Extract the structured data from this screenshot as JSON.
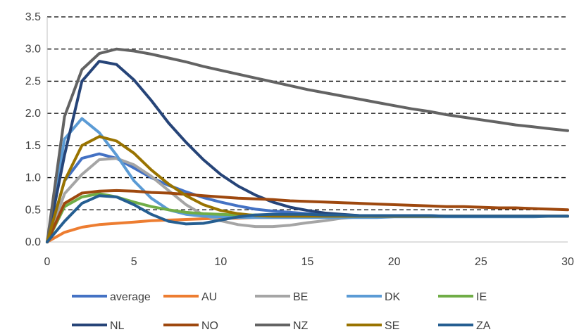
{
  "chart_data": {
    "type": "line",
    "title": "",
    "xlabel": "",
    "ylabel": "",
    "xlim": [
      0,
      30
    ],
    "ylim": [
      0,
      3.5
    ],
    "x_ticks": [
      0,
      5,
      10,
      15,
      20,
      25,
      30
    ],
    "y_ticks": [
      "0.0",
      "0.5",
      "1.0",
      "1.5",
      "2.0",
      "2.5",
      "3.0",
      "3.5"
    ],
    "grid": "horizontal dashed",
    "legend_position": "bottom",
    "x": [
      0,
      1,
      2,
      3,
      4,
      5,
      6,
      7,
      8,
      9,
      10,
      11,
      12,
      13,
      14,
      15,
      16,
      17,
      18,
      19,
      20,
      21,
      22,
      23,
      24,
      25,
      26,
      27,
      28,
      29,
      30
    ],
    "series": [
      {
        "name": "average",
        "color": "#4472C4",
        "values": [
          0,
          0.95,
          1.3,
          1.37,
          1.3,
          1.15,
          1.0,
          0.88,
          0.78,
          0.69,
          0.62,
          0.56,
          0.51,
          0.48,
          0.46,
          0.44,
          0.43,
          0.42,
          0.41,
          0.41,
          0.41,
          0.41,
          0.41,
          0.4,
          0.4,
          0.4,
          0.4,
          0.4,
          0.4,
          0.4,
          0.4
        ]
      },
      {
        "name": "AU",
        "color": "#ED7D31",
        "values": [
          0,
          0.15,
          0.23,
          0.27,
          0.29,
          0.31,
          0.33,
          0.34,
          0.35,
          0.36,
          0.37,
          0.37,
          0.38,
          0.38,
          0.38,
          0.39,
          0.39,
          0.39,
          0.39,
          0.39,
          0.4,
          0.4,
          0.4,
          0.4,
          0.4,
          0.4,
          0.4,
          0.4,
          0.4,
          0.4,
          0.4
        ]
      },
      {
        "name": "BE",
        "color": "#A5A5A5",
        "values": [
          0,
          0.75,
          1.05,
          1.28,
          1.3,
          1.2,
          1.02,
          0.8,
          0.58,
          0.42,
          0.33,
          0.27,
          0.24,
          0.24,
          0.26,
          0.3,
          0.33,
          0.37,
          0.39,
          0.4,
          0.4,
          0.4,
          0.4,
          0.4,
          0.4,
          0.4,
          0.4,
          0.4,
          0.4,
          0.4,
          0.4
        ]
      },
      {
        "name": "DK",
        "color": "#5B9BD5",
        "values": [
          0,
          1.6,
          1.92,
          1.7,
          1.35,
          0.95,
          0.68,
          0.5,
          0.43,
          0.4,
          0.39,
          0.38,
          0.38,
          0.38,
          0.38,
          0.38,
          0.38,
          0.38,
          0.38,
          0.38,
          0.39,
          0.39,
          0.39,
          0.39,
          0.39,
          0.39,
          0.39,
          0.39,
          0.39,
          0.4,
          0.4
        ]
      },
      {
        "name": "IE",
        "color": "#70AD47",
        "values": [
          0,
          0.55,
          0.7,
          0.75,
          0.7,
          0.62,
          0.55,
          0.5,
          0.46,
          0.44,
          0.43,
          0.42,
          0.42,
          0.41,
          0.41,
          0.41,
          0.41,
          0.41,
          0.41,
          0.41,
          0.41,
          0.4,
          0.4,
          0.4,
          0.4,
          0.4,
          0.4,
          0.4,
          0.4,
          0.4,
          0.4
        ]
      },
      {
        "name": "NL",
        "color": "#264478",
        "values": [
          0,
          1.35,
          2.5,
          2.81,
          2.76,
          2.52,
          2.2,
          1.85,
          1.55,
          1.28,
          1.05,
          0.87,
          0.73,
          0.62,
          0.54,
          0.49,
          0.45,
          0.43,
          0.41,
          0.4,
          0.4,
          0.4,
          0.4,
          0.4,
          0.4,
          0.4,
          0.4,
          0.4,
          0.4,
          0.4,
          0.4
        ]
      },
      {
        "name": "NO",
        "color": "#9E480E",
        "values": [
          0,
          0.6,
          0.76,
          0.79,
          0.8,
          0.79,
          0.77,
          0.76,
          0.74,
          0.72,
          0.7,
          0.68,
          0.67,
          0.66,
          0.64,
          0.63,
          0.62,
          0.61,
          0.6,
          0.59,
          0.58,
          0.57,
          0.56,
          0.55,
          0.55,
          0.54,
          0.53,
          0.53,
          0.52,
          0.51,
          0.5
        ]
      },
      {
        "name": "NZ",
        "color": "#636363",
        "values": [
          0,
          1.95,
          2.68,
          2.93,
          3.0,
          2.97,
          2.92,
          2.86,
          2.8,
          2.73,
          2.67,
          2.61,
          2.55,
          2.49,
          2.43,
          2.37,
          2.32,
          2.27,
          2.22,
          2.17,
          2.12,
          2.07,
          2.03,
          1.98,
          1.94,
          1.9,
          1.86,
          1.82,
          1.79,
          1.76,
          1.73
        ]
      },
      {
        "name": "SE",
        "color": "#997300",
        "values": [
          0,
          0.95,
          1.5,
          1.64,
          1.57,
          1.38,
          1.12,
          0.9,
          0.72,
          0.58,
          0.49,
          0.44,
          0.41,
          0.4,
          0.4,
          0.4,
          0.4,
          0.4,
          0.4,
          0.4,
          0.4,
          0.4,
          0.4,
          0.4,
          0.4,
          0.4,
          0.4,
          0.4,
          0.4,
          0.4,
          0.4
        ]
      },
      {
        "name": "ZA",
        "color": "#255E91",
        "values": [
          0,
          0.32,
          0.6,
          0.72,
          0.7,
          0.58,
          0.43,
          0.32,
          0.28,
          0.29,
          0.34,
          0.39,
          0.42,
          0.43,
          0.43,
          0.43,
          0.42,
          0.42,
          0.41,
          0.41,
          0.41,
          0.41,
          0.41,
          0.4,
          0.4,
          0.4,
          0.4,
          0.4,
          0.4,
          0.4,
          0.4
        ]
      }
    ]
  }
}
